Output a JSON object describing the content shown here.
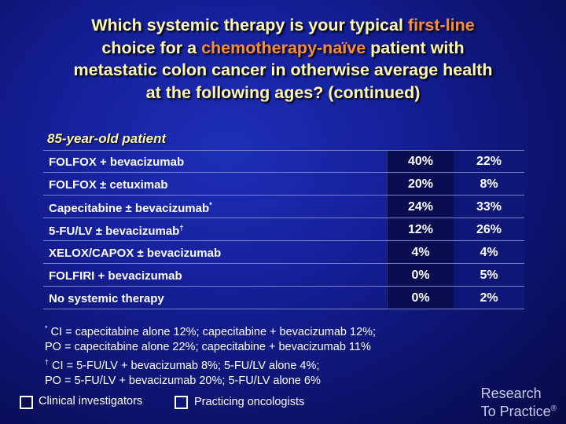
{
  "title": {
    "line1_a": "Which systemic therapy is your typical ",
    "line1_hl": "first-line",
    "line2_a": "choice for a ",
    "line2_hl": "chemotherapy-naïve",
    "line2_b": " patient with",
    "line3": "metastatic colon cancer in otherwise average health",
    "line4": "at the following ages? (continued)"
  },
  "subtitle": "85-year-old patient",
  "colors": {
    "title_text": "#fff9b0",
    "title_highlight": "#ff8c3a",
    "col_investigators": "#0a0e50",
    "col_oncologists": "#0e1778"
  },
  "table": {
    "rows": [
      {
        "label": "FOLFOX + bevacizumab",
        "sup": "",
        "investigators": "40%",
        "oncologists": "22%"
      },
      {
        "label": "FOLFOX ± cetuximab",
        "sup": "",
        "investigators": "20%",
        "oncologists": "8%"
      },
      {
        "label": "Capecitabine ± bevacizumab",
        "sup": "*",
        "investigators": "24%",
        "oncologists": "33%"
      },
      {
        "label": "5-FU/LV ± bevacizumab",
        "sup": "†",
        "investigators": "12%",
        "oncologists": "26%"
      },
      {
        "label": "XELOX/CAPOX ± bevacizumab",
        "sup": "",
        "investigators": "4%",
        "oncologists": "4%"
      },
      {
        "label": "FOLFIRI + bevacizumab",
        "sup": "",
        "investigators": "0%",
        "oncologists": "5%"
      },
      {
        "label": "No systemic therapy",
        "sup": "",
        "investigators": "0%",
        "oncologists": "2%"
      }
    ]
  },
  "footnotes": {
    "f1_mark": "*",
    "f1_line1": " CI = capecitabine alone 12%; capecitabine + bevacizumab 12%;",
    "f1_line2": "PO = capecitabine alone 22%; capecitabine + bevacizumab 11%",
    "f2_mark": "†",
    "f2_line1": " CI = 5-FU/LV + bevacizumab 8%; 5-FU/LV alone 4%;",
    "f2_line2": "PO = 5-FU/LV + bevacizumab 20%; 5-FU/LV alone 6%"
  },
  "legend": {
    "investigators": "Clinical investigators",
    "oncologists": "Practicing oncologists"
  },
  "logo": {
    "line1": "Research",
    "line2": "To Practice",
    "mark": "®"
  }
}
